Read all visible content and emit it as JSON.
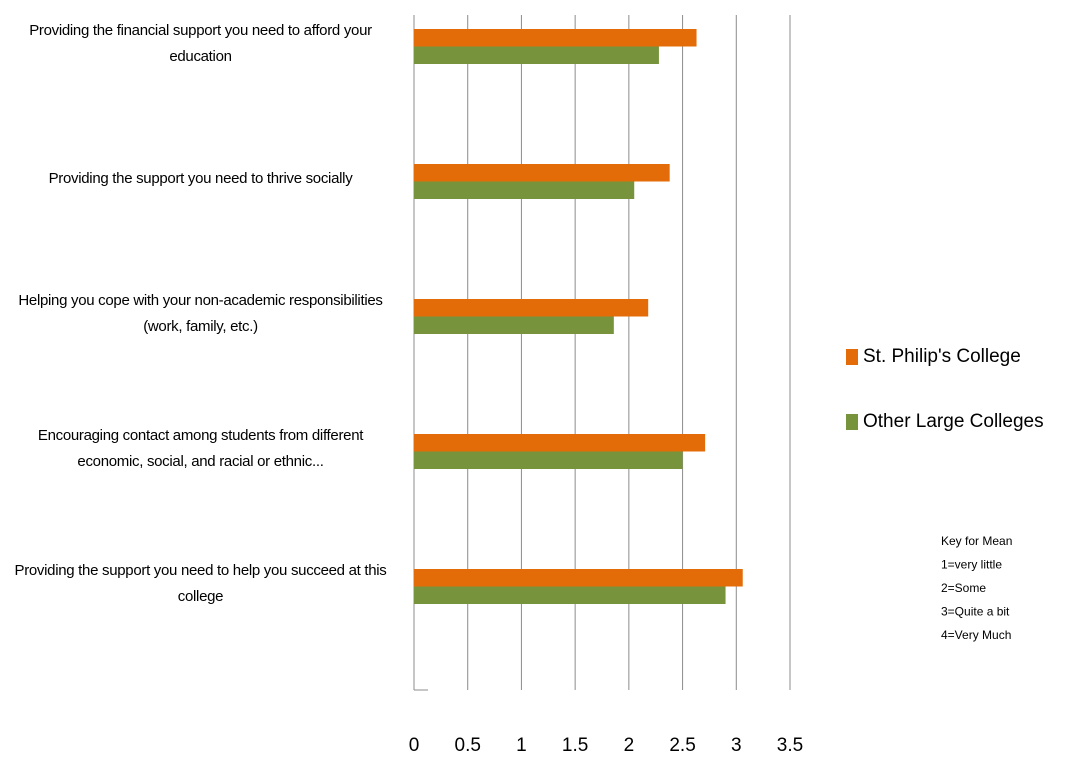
{
  "chart_data": {
    "type": "hbar",
    "categories": [
      "Providing the financial support you need to afford your education",
      "Providing the support you need to thrive socially",
      "Helping you cope with your non-academic responsibilities (work, family, etc.)",
      "Encouraging contact among students from different economic, social, and racial or ethnic...",
      "Providing the support you need to help you succeed at this college"
    ],
    "series": [
      {
        "name": "St. Philip's College",
        "color": "#e36c09",
        "values": [
          2.63,
          2.38,
          2.18,
          2.71,
          3.06
        ]
      },
      {
        "name": "Other Large Colleges",
        "color": "#77933c",
        "values": [
          2.28,
          2.05,
          1.86,
          2.5,
          2.9
        ]
      }
    ],
    "xlim": [
      0,
      3.5
    ],
    "xticks": [
      0,
      0.5,
      1,
      1.5,
      2,
      2.5,
      3,
      3.5
    ],
    "grid": true,
    "legend": "right",
    "annotations": [
      "Key for Mean",
      "1=very little",
      "2=Some",
      "3=Quite a bit",
      "4=Very Much"
    ]
  }
}
